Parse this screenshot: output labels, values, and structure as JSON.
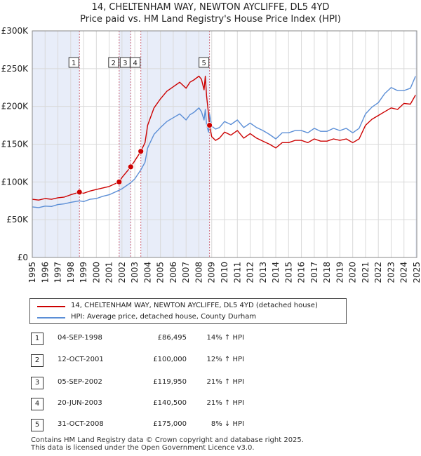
{
  "title_line1": "14, CHELTENHAM WAY, NEWTON AYCLIFFE, DL5 4YD",
  "title_line2": "Price paid vs. HM Land Registry's House Price Index (HPI)",
  "colors": {
    "property": "#cc0000",
    "hpi": "#5b8ed6",
    "shade": "#e8edf9",
    "marker_line": "#cc6677"
  },
  "legend": {
    "property_label": "14, CHELTENHAM WAY, NEWTON AYCLIFFE, DL5 4YD (detached house)",
    "hpi_label": "HPI: Average price, detached house, County Durham"
  },
  "chart_data": {
    "type": "line",
    "title": "Price paid vs. HM Land Registry's House Price Index (HPI)",
    "xlabel": "",
    "ylabel": "",
    "xlim": [
      1995,
      2025
    ],
    "ylim": [
      0,
      300000
    ],
    "yticks": [
      0,
      50000,
      100000,
      150000,
      200000,
      250000,
      300000
    ],
    "ytick_labels": [
      "£0",
      "£50K",
      "£100K",
      "£150K",
      "£200K",
      "£250K",
      "£300K"
    ],
    "xtick_labels": [
      "1995",
      "1996",
      "1997",
      "1998",
      "1999",
      "2000",
      "2001",
      "2002",
      "2003",
      "2004",
      "2005",
      "2006",
      "2007",
      "2008",
      "2009",
      "2010",
      "2011",
      "2012",
      "2013",
      "2014",
      "2015",
      "2016",
      "2017",
      "2018",
      "2019",
      "2020",
      "2021",
      "2022",
      "2023",
      "2024",
      "2025"
    ],
    "grid": true,
    "shaded_ranges": [
      [
        1995,
        1998.68
      ],
      [
        2001.78,
        2002.68
      ],
      [
        2003.47,
        2008.83
      ],
      [
        2024.9,
        2025
      ]
    ],
    "series": [
      {
        "name": "14, CHELTENHAM WAY, NEWTON AYCLIFFE, DL5 4YD (detached house)",
        "color": "#cc0000",
        "x": [
          1995,
          1995.5,
          1996,
          1996.5,
          1997,
          1997.5,
          1998,
          1998.68,
          1999,
          1999.5,
          2000,
          2000.5,
          2001,
          2001.78,
          2002,
          2002.68,
          2003,
          2003.47,
          2003.8,
          2004,
          2004.5,
          2005,
          2005.5,
          2006,
          2006.5,
          2007,
          2007.3,
          2007.6,
          2008,
          2008.2,
          2008.4,
          2008.5,
          2008.6,
          2008.75,
          2008.83,
          2009,
          2009.3,
          2009.6,
          2010,
          2010.5,
          2011,
          2011.5,
          2012,
          2012.5,
          2013,
          2013.5,
          2014,
          2014.5,
          2015,
          2015.5,
          2016,
          2016.5,
          2017,
          2017.5,
          2018,
          2018.5,
          2019,
          2019.5,
          2020,
          2020.5,
          2021,
          2021.5,
          2022,
          2022.5,
          2023,
          2023.5,
          2024,
          2024.5,
          2024.9
        ],
        "y": [
          77000,
          76000,
          78000,
          77000,
          79000,
          80000,
          83000,
          86495,
          85000,
          88000,
          90000,
          92000,
          94000,
          100000,
          106000,
          119950,
          128000,
          140500,
          152000,
          175000,
          198000,
          210000,
          220000,
          226000,
          232000,
          224000,
          232000,
          235000,
          240000,
          236000,
          222000,
          240000,
          214000,
          190000,
          175000,
          160000,
          155000,
          158000,
          166000,
          162000,
          168000,
          158000,
          164000,
          158000,
          154000,
          150000,
          145000,
          152000,
          152000,
          155000,
          155000,
          152000,
          157000,
          154000,
          154000,
          157000,
          155000,
          157000,
          152000,
          157000,
          175000,
          183000,
          188000,
          193000,
          198000,
          196000,
          204000,
          203000,
          215000
        ]
      },
      {
        "name": "HPI: Average price, detached house, County Durham",
        "color": "#5b8ed6",
        "x": [
          1995,
          1995.5,
          1996,
          1996.5,
          1997,
          1997.5,
          1998,
          1998.68,
          1999,
          1999.5,
          2000,
          2000.5,
          2001,
          2001.78,
          2002,
          2002.68,
          2003,
          2003.47,
          2003.8,
          2004,
          2004.5,
          2005,
          2005.5,
          2006,
          2006.5,
          2007,
          2007.3,
          2007.6,
          2008,
          2008.2,
          2008.4,
          2008.5,
          2008.6,
          2008.75,
          2008.83,
          2009,
          2009.3,
          2009.6,
          2010,
          2010.5,
          2011,
          2011.5,
          2012,
          2012.5,
          2013,
          2013.5,
          2014,
          2014.5,
          2015,
          2015.5,
          2016,
          2016.5,
          2017,
          2017.5,
          2018,
          2018.5,
          2019,
          2019.5,
          2020,
          2020.5,
          2021,
          2021.5,
          2022,
          2022.5,
          2023,
          2023.5,
          2024,
          2024.5,
          2024.9
        ],
        "y": [
          67000,
          66000,
          68000,
          67500,
          70000,
          71000,
          73000,
          75000,
          74000,
          77000,
          78000,
          81000,
          83000,
          89000,
          91000,
          99000,
          104000,
          116000,
          126000,
          145000,
          163000,
          172000,
          180000,
          185000,
          190000,
          182000,
          189000,
          192000,
          198000,
          193000,
          182000,
          196000,
          176000,
          166000,
          190000,
          174000,
          170000,
          172000,
          180000,
          176000,
          182000,
          172000,
          178000,
          172000,
          168000,
          163000,
          157000,
          165000,
          165000,
          168000,
          168000,
          165000,
          171000,
          167000,
          167000,
          171000,
          168000,
          171000,
          165000,
          171000,
          190000,
          199000,
          205000,
          217000,
          225000,
          221000,
          221000,
          224000,
          240000
        ]
      }
    ],
    "sales": [
      {
        "id": "1",
        "x": 1998.68,
        "y": 86495
      },
      {
        "id": "2",
        "x": 2001.78,
        "y": 100000
      },
      {
        "id": "3",
        "x": 2002.68,
        "y": 119950
      },
      {
        "id": "4",
        "x": 2003.47,
        "y": 140500
      },
      {
        "id": "5",
        "x": 2008.83,
        "y": 175000
      }
    ]
  },
  "transactions": [
    {
      "num": "1",
      "date": "04-SEP-1998",
      "price": "£86,495",
      "hpi": "14% ↑ HPI"
    },
    {
      "num": "2",
      "date": "12-OCT-2001",
      "price": "£100,000",
      "hpi": "12% ↑ HPI"
    },
    {
      "num": "3",
      "date": "05-SEP-2002",
      "price": "£119,950",
      "hpi": "21% ↑ HPI"
    },
    {
      "num": "4",
      "date": "20-JUN-2003",
      "price": "£140,500",
      "hpi": "21% ↑ HPI"
    },
    {
      "num": "5",
      "date": "31-OCT-2008",
      "price": "£175,000",
      "hpi": "8% ↓ HPI"
    }
  ],
  "footer": {
    "line1": "Contains HM Land Registry data © Crown copyright and database right 2025.",
    "line2": "This data is licensed under the Open Government Licence v3.0."
  }
}
